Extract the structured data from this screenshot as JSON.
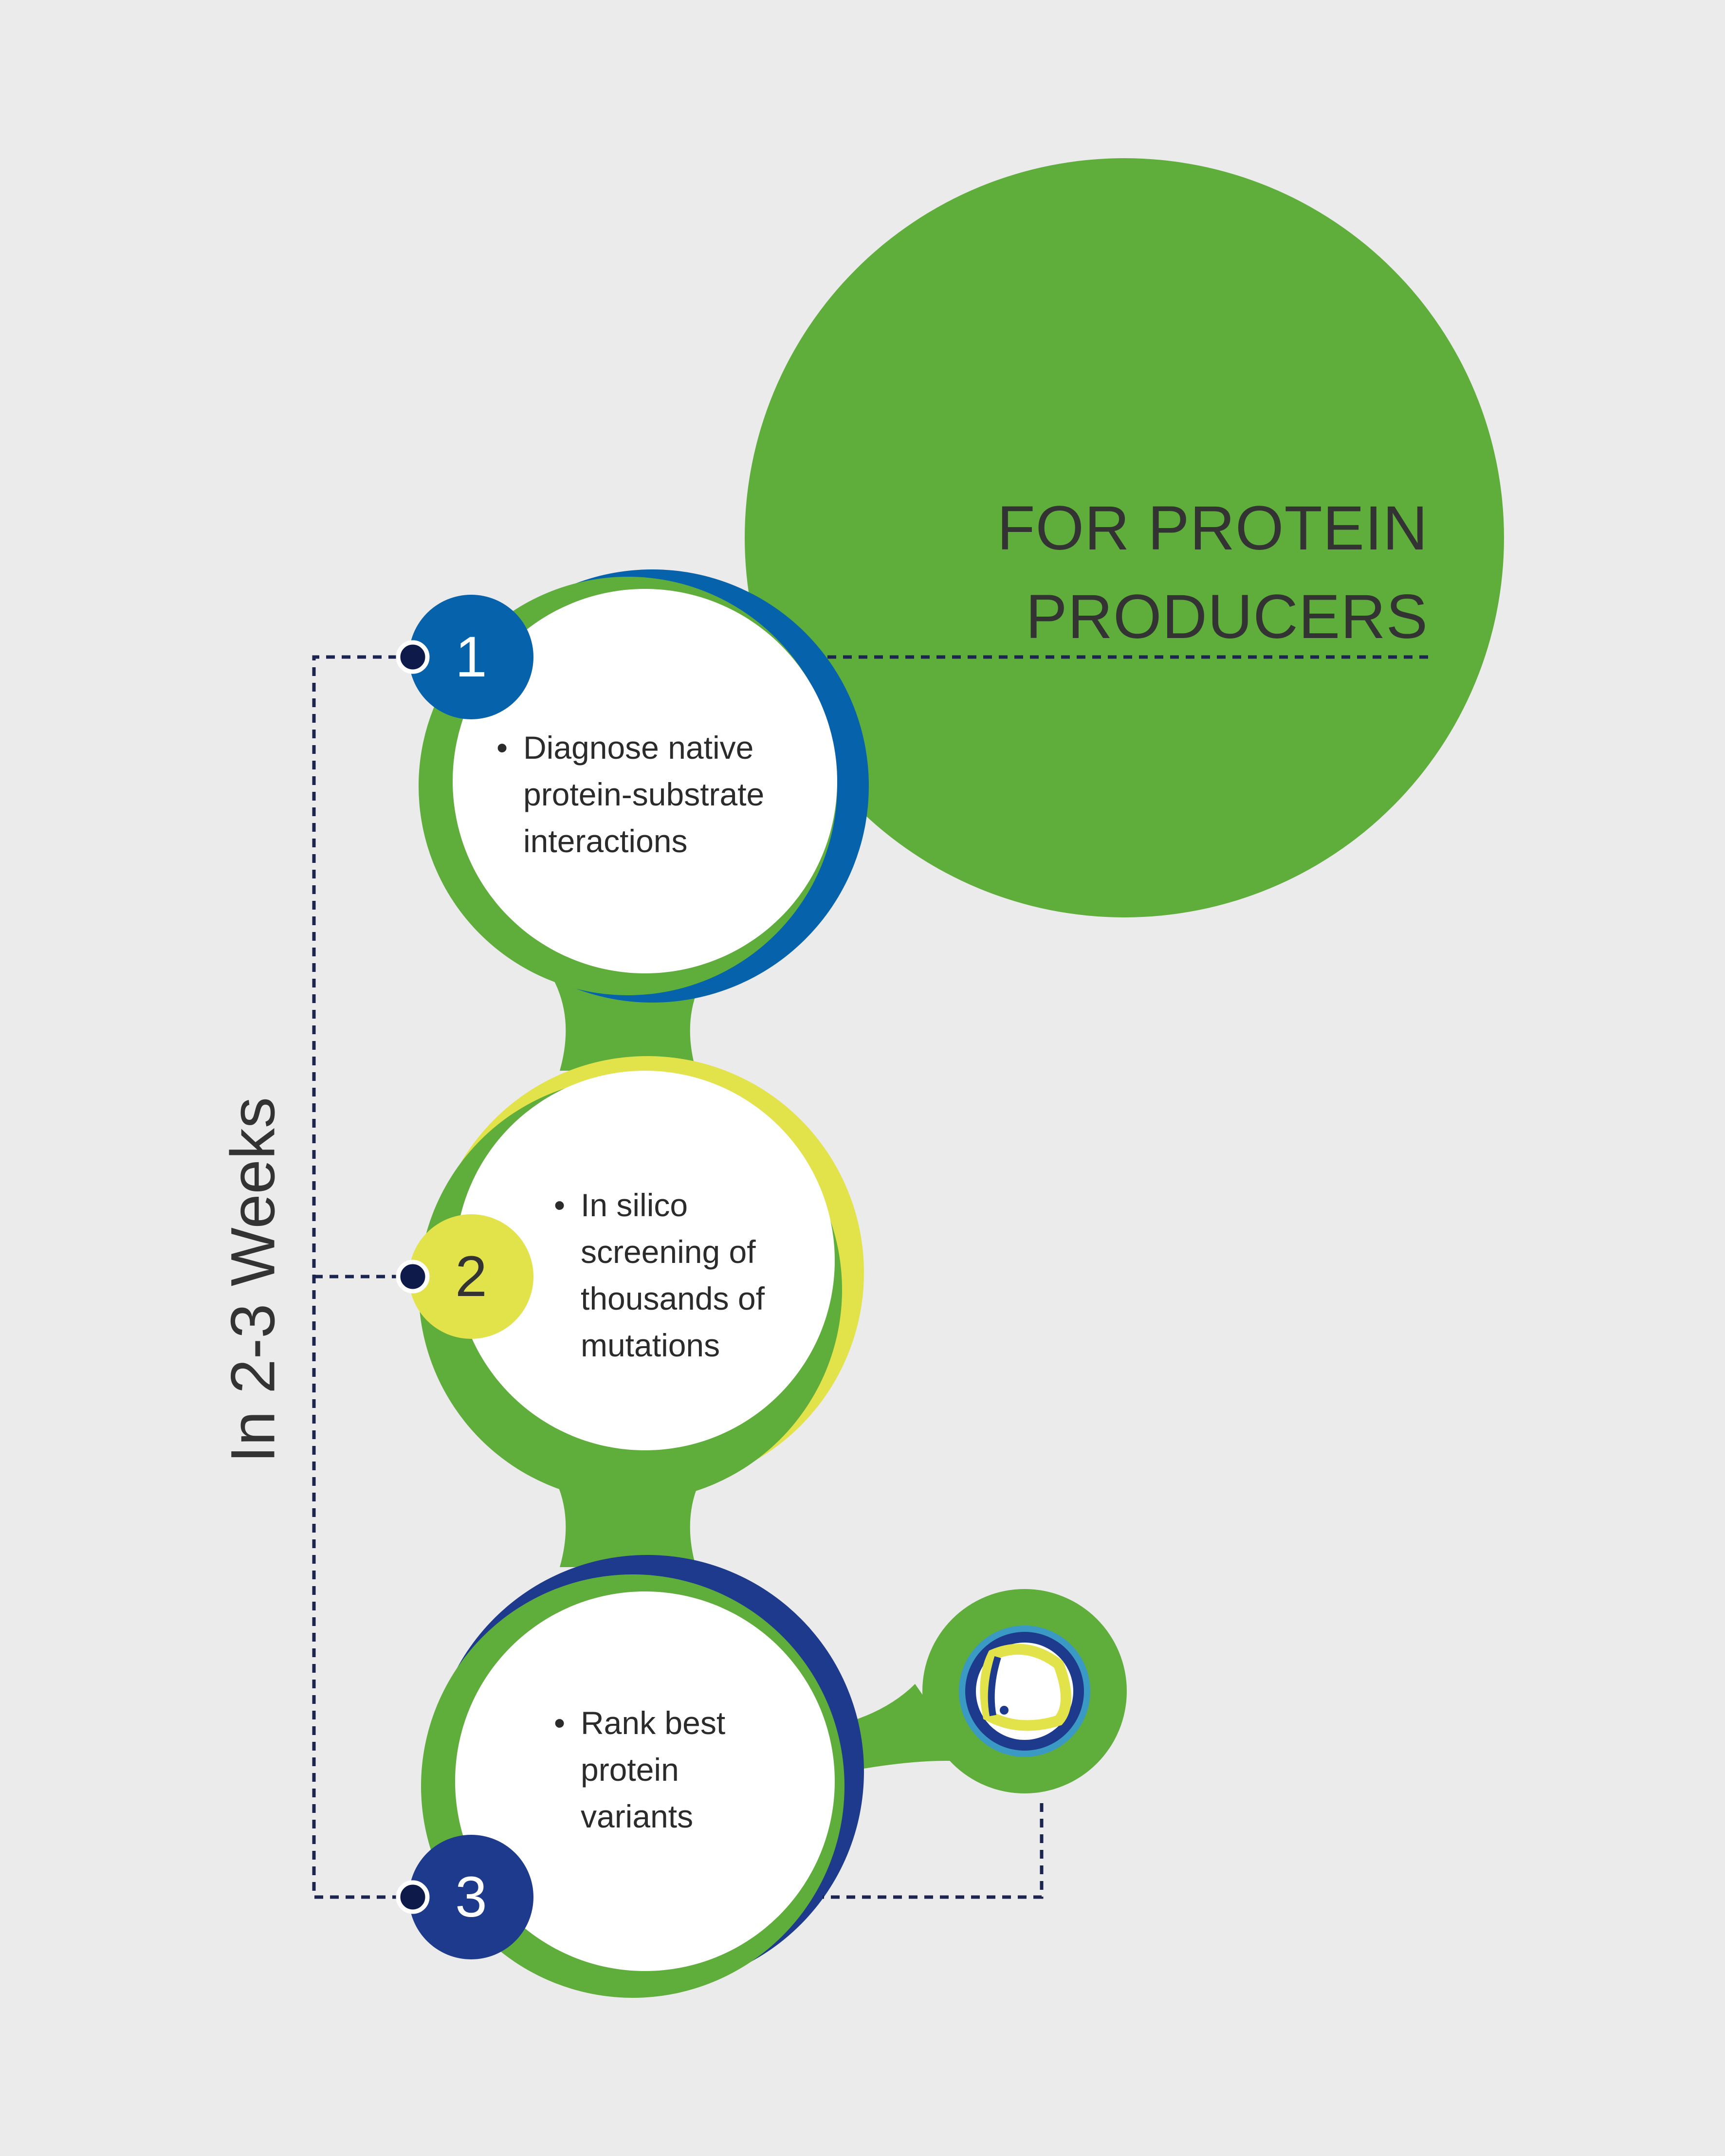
{
  "title": {
    "line1": "FOR PROTEIN",
    "line2": "PRODUCERS"
  },
  "timeline_label": "In 2-3 Weeks",
  "steps": [
    {
      "number": "1",
      "bullet": "•",
      "text": [
        "Diagnose native",
        "protein-substrate",
        "interactions"
      ]
    },
    {
      "number": "2",
      "bullet": "•",
      "text": [
        "In silico",
        "screening of",
        "thousands of",
        "mutations"
      ]
    },
    {
      "number": "3",
      "bullet": "•",
      "text": [
        "Rank best",
        "protein",
        "variants"
      ]
    }
  ],
  "colors": {
    "background": "#ebebeb",
    "green": "#5fad3b",
    "blue": "#0762ac",
    "yellow": "#e2e24a",
    "navy": "#1e3a8c",
    "dot": "#0e1b4a",
    "dash": "#1c2550",
    "white": "#ffffff"
  },
  "icons": {
    "terminal_bubble": "protein-structure-icon"
  }
}
